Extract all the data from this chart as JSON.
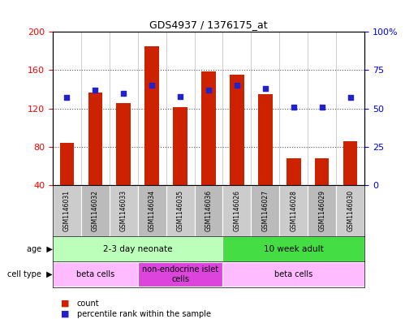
{
  "title": "GDS4937 / 1376175_at",
  "samples": [
    "GSM1146031",
    "GSM1146032",
    "GSM1146033",
    "GSM1146034",
    "GSM1146035",
    "GSM1146036",
    "GSM1146026",
    "GSM1146027",
    "GSM1146028",
    "GSM1146029",
    "GSM1146030"
  ],
  "counts": [
    84,
    137,
    126,
    185,
    121,
    159,
    155,
    135,
    68,
    68,
    86
  ],
  "percentiles": [
    57,
    62,
    60,
    65,
    58,
    62,
    65,
    63,
    51,
    51,
    57
  ],
  "ylim_left": [
    40,
    200
  ],
  "ylim_right": [
    0,
    100
  ],
  "yticks_left": [
    40,
    80,
    120,
    160,
    200
  ],
  "yticks_right": [
    0,
    25,
    50,
    75,
    100
  ],
  "ytick_right_labels": [
    "0",
    "25",
    "50",
    "75",
    "100%"
  ],
  "bar_color": "#cc2200",
  "dot_color": "#2222cc",
  "bar_bottom": 40,
  "age_groups": [
    {
      "label": "2-3 day neonate",
      "start": 0,
      "end": 6,
      "color": "#bbffbb"
    },
    {
      "label": "10 week adult",
      "start": 6,
      "end": 11,
      "color": "#44dd44"
    }
  ],
  "cell_type_groups": [
    {
      "label": "beta cells",
      "start": 0,
      "end": 3,
      "color": "#ffbbff"
    },
    {
      "label": "non-endocrine islet\ncells",
      "start": 3,
      "end": 6,
      "color": "#dd44dd"
    },
    {
      "label": "beta cells",
      "start": 6,
      "end": 11,
      "color": "#ffbbff"
    }
  ],
  "grid_color": "#555555",
  "plot_bg_color": "#ffffff",
  "sample_bg_color": "#cccccc",
  "legend_items": [
    {
      "label": "count",
      "color": "#cc2200"
    },
    {
      "label": "percentile rank within the sample",
      "color": "#2222cc"
    }
  ]
}
